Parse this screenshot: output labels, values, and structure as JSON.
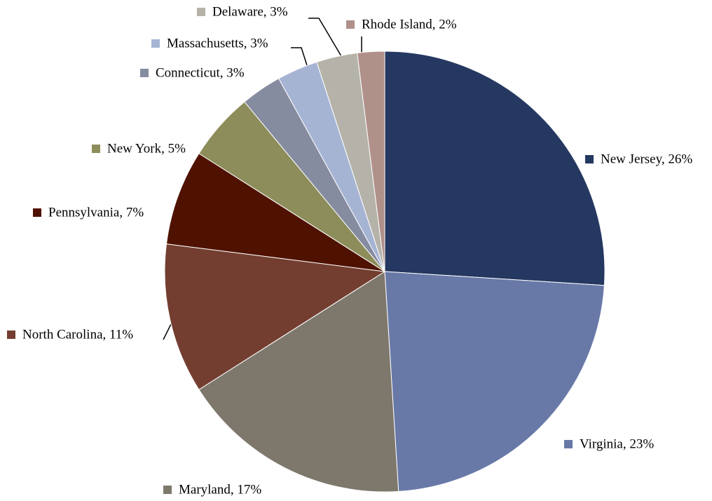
{
  "chart_data": {
    "type": "pie",
    "values": [
      26,
      23,
      17,
      11,
      7,
      5,
      3,
      3,
      3,
      2
    ],
    "value_labels": [
      "New Jersey, 26%",
      "Virginia, 23%",
      "Maryland, 17%",
      "North Carolina, 11%",
      "Pennsylvania, 7%",
      "New York, 5%",
      "Connecticut, 3%",
      "Massachusetts, 3%",
      "Delaware, 3%",
      "Rhode Island, 2%"
    ],
    "colors": [
      "#253861",
      "#6879a8",
      "#7e786c",
      "#733e30",
      "#4f1201",
      "#8c8d5a",
      "#868ca0",
      "#a6b4d4",
      "#b5b3a9",
      "#b0918a"
    ]
  }
}
